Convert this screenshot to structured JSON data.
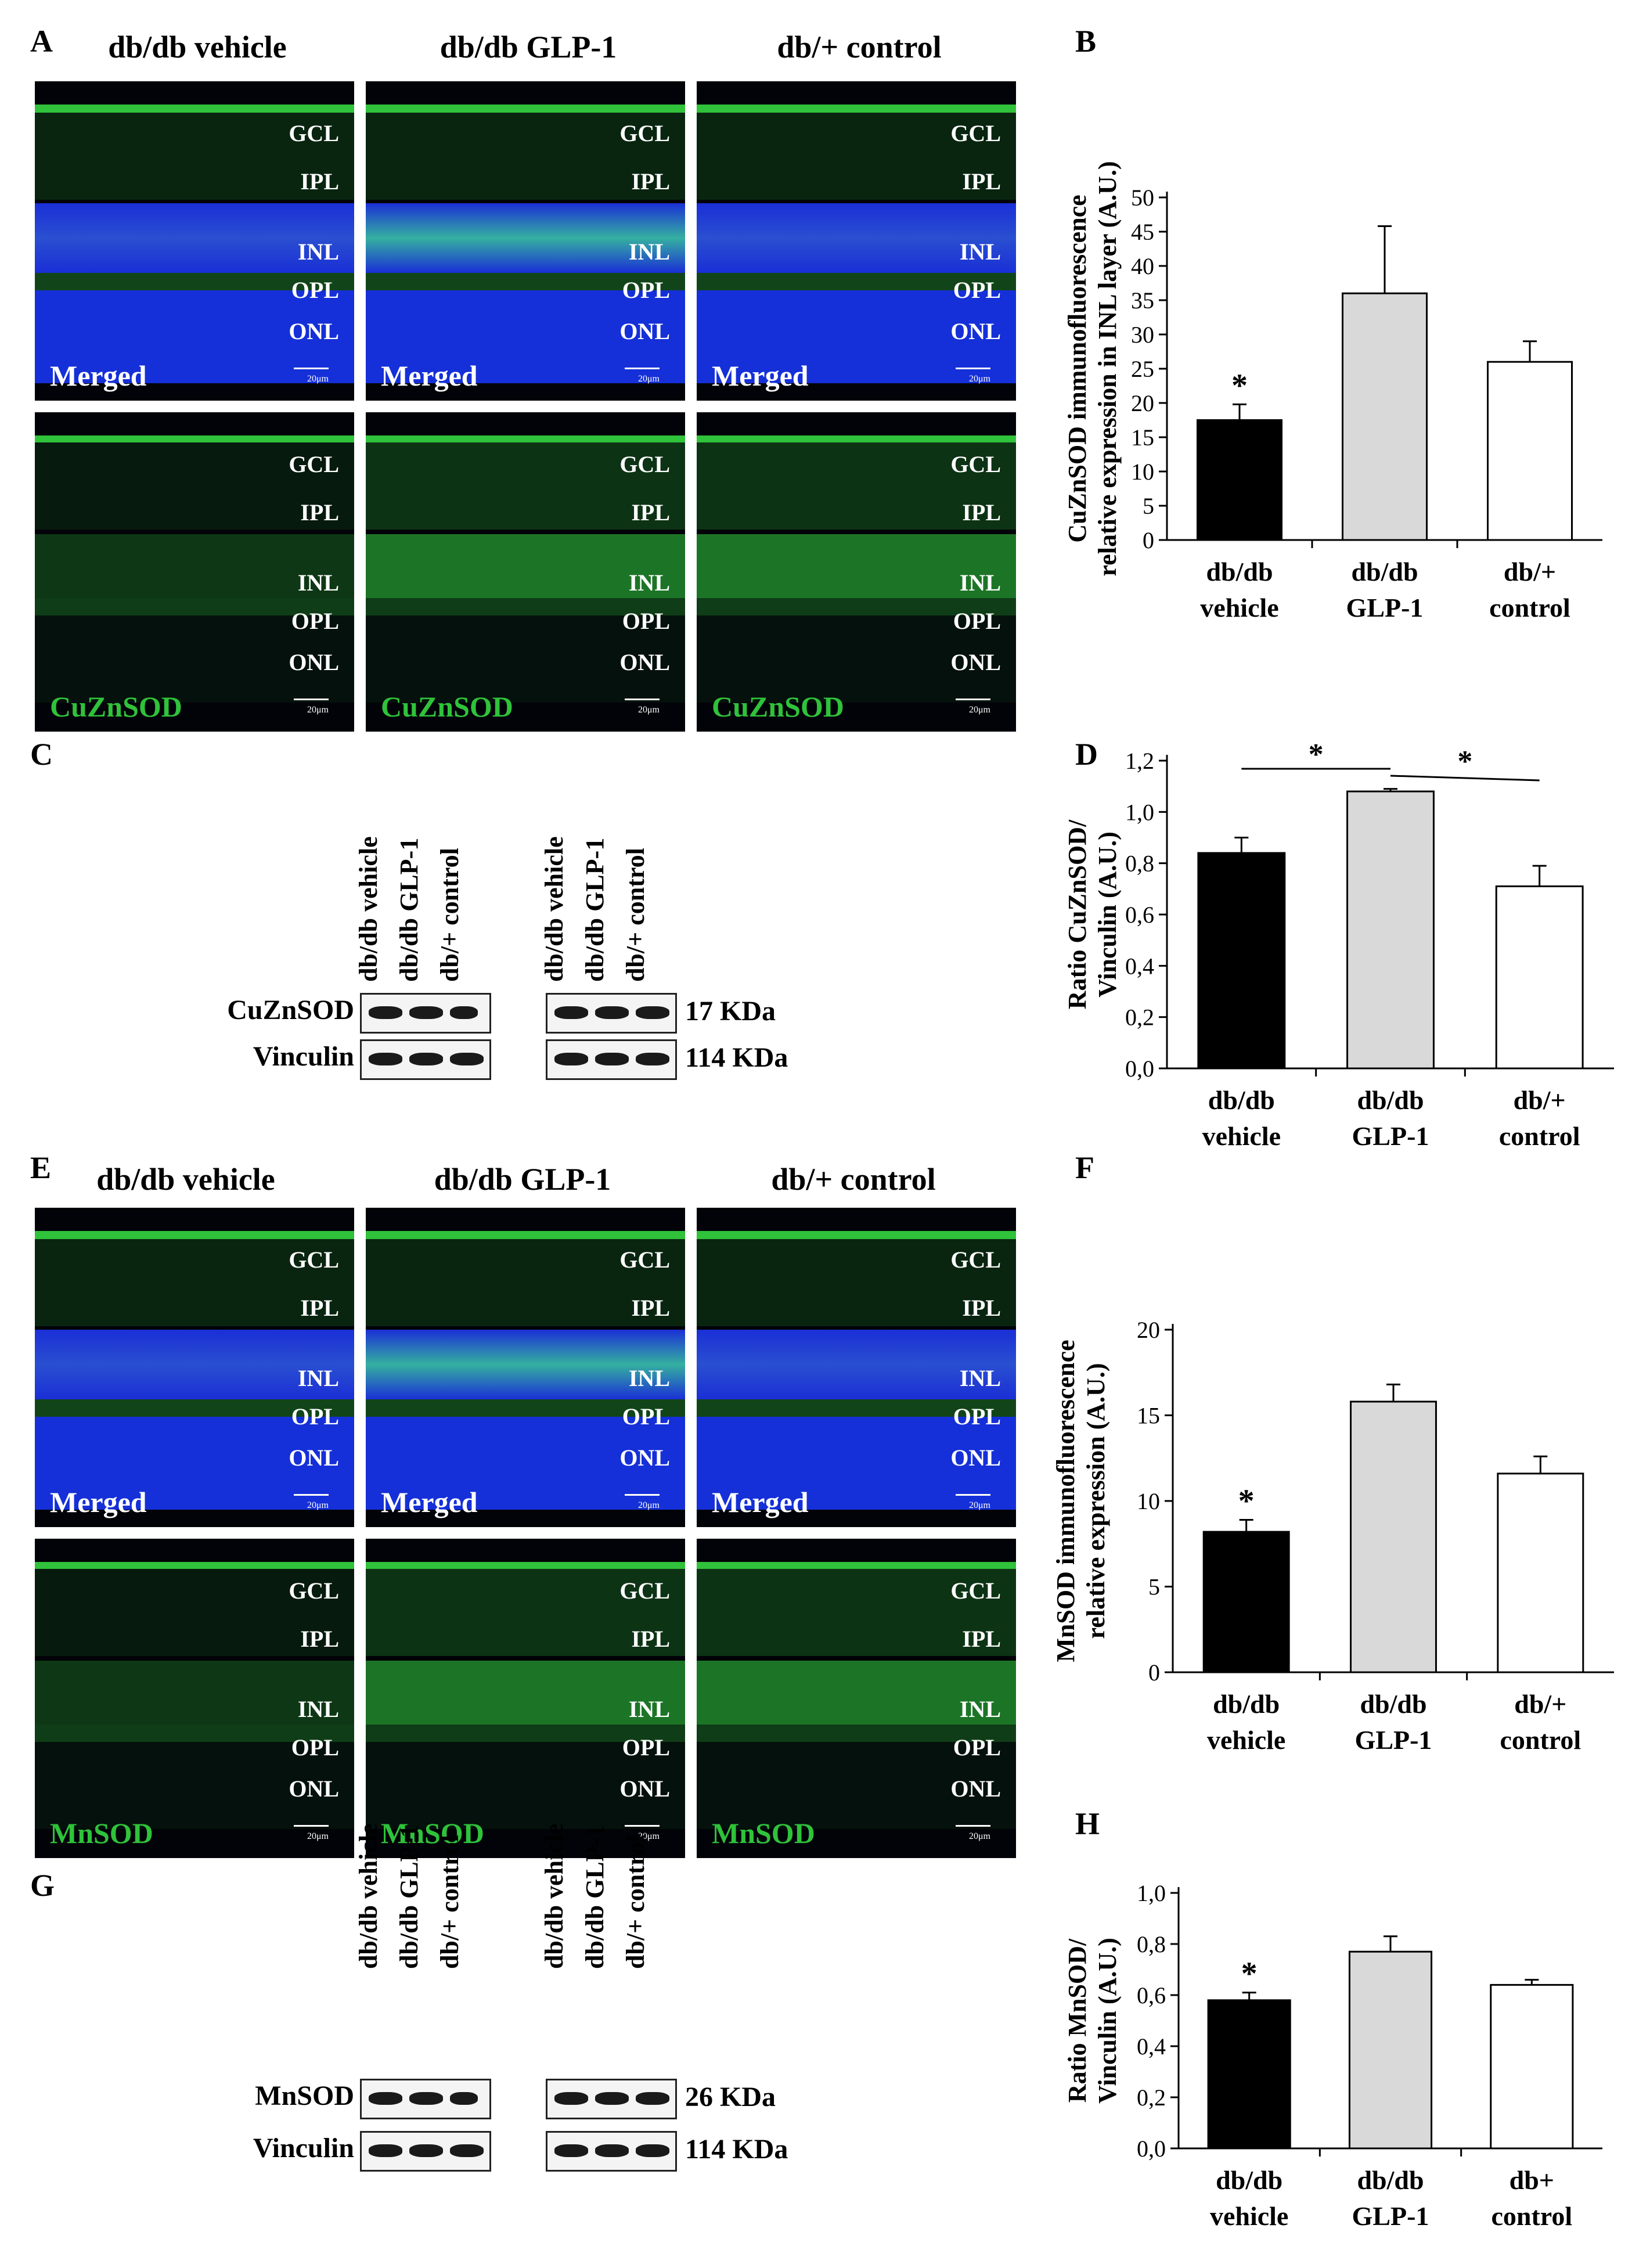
{
  "panel_letters": {
    "A": "A",
    "B": "B",
    "C": "C",
    "D": "D",
    "E": "E",
    "F": "F",
    "G": "G",
    "H": "H"
  },
  "column_headers": [
    "db/db vehicle",
    "db/db GLP-1",
    "db/+ control"
  ],
  "layer_labels": [
    "GCL",
    "IPL",
    "INL",
    "OPL",
    "ONL"
  ],
  "scale_bar": "20μm",
  "micrograph_captions": {
    "merged": "Merged",
    "cuznsod": "CuZnSOD",
    "mnsod": "MnSOD"
  },
  "colors": {
    "dapi": "#1a2fd6",
    "green": "#2fc23a",
    "black_bar": "#000000",
    "gray_bar": "#d9d9d9",
    "white_bar": "#ffffff"
  },
  "blot_C": {
    "lanes": [
      "db/db vehicle",
      "db/db GLP-1",
      "db/+ control",
      "db/db vehicle",
      "db/db GLP-1",
      "db/+ control"
    ],
    "rows": [
      {
        "label": "CuZnSOD",
        "kda": "17 KDa"
      },
      {
        "label": "Vinculin",
        "kda": "114 KDa"
      }
    ]
  },
  "blot_G": {
    "lanes": [
      "db/db vehicle",
      "db/db GLP-1",
      "db/+ control",
      "db/db vehicle",
      "db/db GLP-1",
      "db/+ control"
    ],
    "rows": [
      {
        "label": "MnSOD",
        "kda": "26 KDa"
      },
      {
        "label": "Vinculin",
        "kda": "114 KDa"
      }
    ]
  },
  "chart_data": [
    {
      "panel": "B",
      "type": "bar",
      "categories": [
        [
          "db/db",
          "vehicle"
        ],
        [
          "db/db",
          "GLP-1"
        ],
        [
          "db/+",
          "control"
        ]
      ],
      "values": [
        17.5,
        36,
        26
      ],
      "errors": [
        2.3,
        9.8,
        3
      ],
      "bar_colors": [
        "#000000",
        "#d9d9d9",
        "#ffffff"
      ],
      "ylabel": [
        "CuZnSOD immunofluorescence",
        "relative expression in INL layer (A.U.)"
      ],
      "ylim": [
        0,
        50
      ],
      "yticks": [
        "0",
        "5",
        "10",
        "15",
        "20",
        "25",
        "30",
        "35",
        "40",
        "45",
        "50"
      ],
      "significance": [
        {
          "bar": 0,
          "label": "*"
        }
      ]
    },
    {
      "panel": "D",
      "type": "bar",
      "categories": [
        [
          "db/db",
          "vehicle"
        ],
        [
          "db/db",
          "GLP-1"
        ],
        [
          "db/+",
          "control"
        ]
      ],
      "values": [
        0.84,
        1.08,
        0.71
      ],
      "errors": [
        0.06,
        0.01,
        0.08
      ],
      "bar_colors": [
        "#000000",
        "#d9d9d9",
        "#ffffff"
      ],
      "ylabel": [
        "Ratio CuZnSOD/",
        "Vinculin (A.U.)"
      ],
      "ylim": [
        0,
        1.2
      ],
      "yticks": [
        "0,0",
        "0,2",
        "0,4",
        "0,6",
        "0,8",
        "1,0",
        "1,2"
      ],
      "significance": [
        {
          "from": 0,
          "to": 1,
          "label": "*"
        },
        {
          "from": 1,
          "to": 2,
          "label": "*"
        }
      ]
    },
    {
      "panel": "F",
      "type": "bar",
      "categories": [
        [
          "db/db",
          "vehicle"
        ],
        [
          "db/db",
          "GLP-1"
        ],
        [
          "db/+",
          "control"
        ]
      ],
      "values": [
        8.2,
        15.8,
        11.6
      ],
      "errors": [
        0.7,
        1.0,
        1.0
      ],
      "bar_colors": [
        "#000000",
        "#d9d9d9",
        "#ffffff"
      ],
      "ylabel": [
        "MnSOD immunofluorescence",
        "relative expression (A.U.)"
      ],
      "ylim": [
        0,
        20
      ],
      "yticks": [
        "0",
        "5",
        "10",
        "15",
        "20"
      ],
      "significance": [
        {
          "bar": 0,
          "label": "*"
        }
      ]
    },
    {
      "panel": "H",
      "type": "bar",
      "categories": [
        [
          "db/db",
          "vehicle"
        ],
        [
          "db/db",
          "GLP-1"
        ],
        [
          "db+",
          "control"
        ]
      ],
      "values": [
        0.58,
        0.77,
        0.64
      ],
      "errors": [
        0.03,
        0.06,
        0.02
      ],
      "bar_colors": [
        "#000000",
        "#d9d9d9",
        "#ffffff"
      ],
      "ylabel": [
        "Ratio MnSOD/",
        "Vinculin (A.U.)"
      ],
      "ylim": [
        0,
        1.0
      ],
      "yticks": [
        "0,0",
        "0,2",
        "0,4",
        "0,6",
        "0,8",
        "1,0"
      ],
      "significance": [
        {
          "bar": 0,
          "label": "*"
        }
      ]
    }
  ]
}
